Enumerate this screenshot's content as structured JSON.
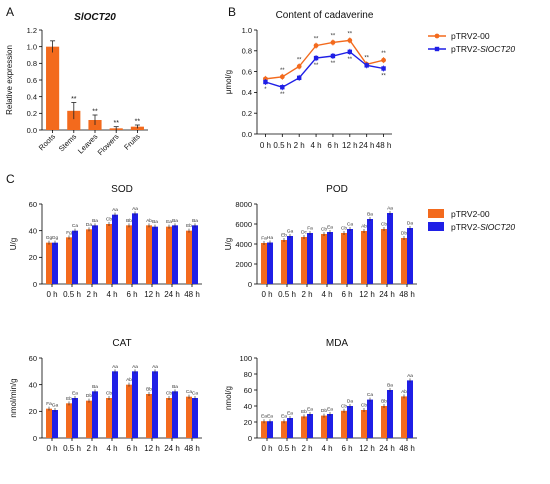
{
  "panel_letters": [
    "A",
    "B",
    "C"
  ],
  "colors": {
    "orange": "#F36A1D",
    "blue": "#1F1FE6",
    "axis": "#000000"
  },
  "chart_data": [
    {
      "id": "A",
      "type": "bar",
      "title": "SlOCT20",
      "ylabel": "Relative expression",
      "ylim": [
        0,
        1.2
      ],
      "yticks": [
        "0.0",
        "0.2",
        "0.4",
        "0.6",
        "0.8",
        "1.0",
        "1.2"
      ],
      "categories": [
        "Roots",
        "Stems",
        "Leaves",
        "Flowers",
        "Fruits"
      ],
      "values": [
        1.0,
        0.23,
        0.12,
        0.02,
        0.04
      ],
      "errors": [
        0.07,
        0.1,
        0.06,
        0.02,
        0.02
      ],
      "annotations": [
        "",
        "**",
        "**",
        "**",
        "**"
      ]
    },
    {
      "id": "B",
      "type": "line",
      "title": "Content of cadaverine",
      "ylabel": "μmol/g",
      "ylim": [
        0,
        1.0
      ],
      "yticks": [
        "0.0",
        "0.2",
        "0.4",
        "0.6",
        "0.8",
        "1.0"
      ],
      "categories": [
        "0 h",
        "0.5 h",
        "2 h",
        "4 h",
        "6 h",
        "12 h",
        "24 h",
        "48 h"
      ],
      "series": [
        {
          "name": "pTRV2-00",
          "values": [
            0.53,
            0.55,
            0.65,
            0.85,
            0.88,
            0.9,
            0.67,
            0.71
          ],
          "annotations": [
            "",
            "**",
            "**",
            "**",
            "**",
            "**",
            "**",
            "**"
          ]
        },
        {
          "name": "pTRV2-SlOCT20",
          "values": [
            0.5,
            0.45,
            0.54,
            0.73,
            0.75,
            0.79,
            0.66,
            0.63
          ],
          "annotations": [
            "*",
            "**",
            "",
            "**",
            "**",
            "**",
            "",
            "**"
          ]
        }
      ],
      "legend": "right"
    },
    {
      "id": "C1",
      "type": "bar",
      "title": "SOD",
      "ylabel": "U/g",
      "ylim": [
        0,
        60
      ],
      "yticks": [
        "0",
        "20",
        "40",
        "60"
      ],
      "categories": [
        "0 h",
        "0.5 h",
        "2 h",
        "4 h",
        "6 h",
        "12 h",
        "24 h",
        "48 h"
      ],
      "series": [
        {
          "name": "pTRV2-00",
          "values": [
            31,
            35,
            41,
            45,
            44,
            44,
            43,
            40
          ],
          "labels": [
            "Gg",
            "Fg",
            "Da",
            "Cb",
            "Bb",
            "Ab",
            "Ea",
            "Eb"
          ]
        },
        {
          "name": "pTRV2-SlOCT20",
          "values": [
            31,
            40,
            44,
            52,
            53,
            43,
            44,
            44
          ],
          "labels": [
            "Gg",
            "Ca",
            "Ba",
            "Aa",
            "Aa",
            "Ba",
            "Ba",
            "Ba"
          ]
        }
      ]
    },
    {
      "id": "C2",
      "type": "bar",
      "title": "POD",
      "ylabel": "U/g",
      "ylim": [
        0,
        8000
      ],
      "yticks": [
        "0",
        "2000",
        "4000",
        "6000",
        "8000"
      ],
      "categories": [
        "0 h",
        "0.5 h",
        "2 h",
        "4 h",
        "6 h",
        "12 h",
        "24 h",
        "48 h"
      ],
      "series": [
        {
          "name": "pTRV2-00",
          "values": [
            4100,
            4400,
            4700,
            5000,
            5100,
            5300,
            5500,
            4600
          ],
          "labels": [
            "Fa",
            "Eb",
            "Dc",
            "Cb",
            "Cb",
            "Ab",
            "Cb",
            "Db"
          ]
        },
        {
          "name": "pTRV2-SlOCT20",
          "values": [
            4150,
            4800,
            5100,
            5200,
            5500,
            6500,
            7100,
            5600
          ],
          "labels": [
            "Ha",
            "Ga",
            "Fa",
            "Ea",
            "Ca",
            "Ba",
            "Aa",
            "Da"
          ]
        }
      ]
    },
    {
      "id": "C3",
      "type": "bar",
      "title": "CAT",
      "ylabel": "nmol/min/g",
      "ylim": [
        0,
        60
      ],
      "yticks": [
        "0",
        "20",
        "40",
        "60"
      ],
      "categories": [
        "0 h",
        "0.5 h",
        "2 h",
        "4 h",
        "6 h",
        "12 h",
        "24 h",
        "48 h"
      ],
      "series": [
        {
          "name": "pTRV2-00",
          "values": [
            22,
            26,
            28,
            30,
            40,
            33,
            30,
            31
          ],
          "labels": [
            "Fa",
            "Eb",
            "Db",
            "Cb",
            "Ab",
            "Bb",
            "Cb",
            "Ca"
          ]
        },
        {
          "name": "pTRV2-SlOCT20",
          "values": [
            21,
            30,
            35,
            50,
            50,
            50,
            35,
            30
          ],
          "labels": [
            "Ga",
            "Ea",
            "Ba",
            "Aa",
            "Aa",
            "Aa",
            "Ba",
            "Ca"
          ]
        }
      ]
    },
    {
      "id": "C4",
      "type": "bar",
      "title": "MDA",
      "ylabel": "nmol/g",
      "ylim": [
        0,
        100
      ],
      "yticks": [
        "0",
        "20",
        "40",
        "60",
        "80",
        "100"
      ],
      "categories": [
        "0 h",
        "0.5 h",
        "2 h",
        "4 h",
        "6 h",
        "12 h",
        "24 h",
        "48 h"
      ],
      "series": [
        {
          "name": "pTRV2-00",
          "values": [
            21,
            21,
            27,
            28,
            34,
            35,
            40,
            52
          ],
          "labels": [
            "Ea",
            "Ea",
            "Eb",
            "Db",
            "Cb",
            "Cb",
            "Bb",
            "Ab"
          ]
        },
        {
          "name": "pTRV2-SlOCT20",
          "values": [
            21,
            25,
            30,
            30,
            40,
            48,
            60,
            72
          ],
          "labels": [
            "Ea",
            "Ea",
            "Ea",
            "Ea",
            "Da",
            "Ca",
            "Ba",
            "Aa"
          ]
        }
      ]
    }
  ],
  "legends": {
    "B": [
      "pTRV2-00",
      "pTRV2-SlOCT20"
    ],
    "C": [
      "pTRV2-00",
      "pTRV2-SlOCT20"
    ]
  }
}
